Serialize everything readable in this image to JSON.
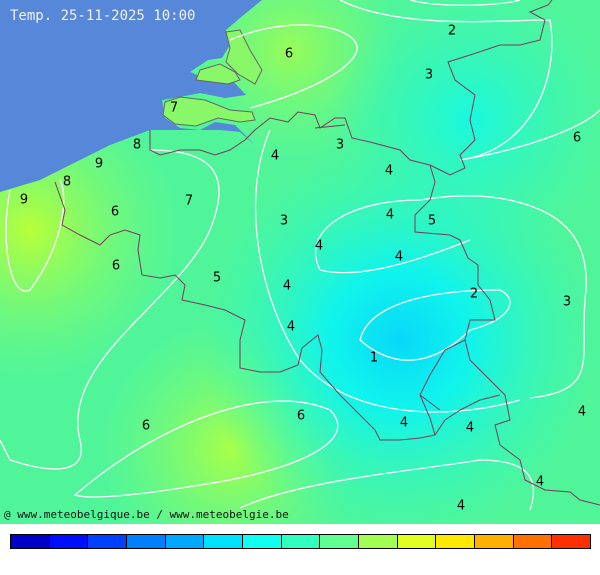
{
  "header": {
    "title": "Temp. 25-11-2025 10:00"
  },
  "footer": {
    "credit": "@ www.meteobelgique.be / www.meteobelgie.be"
  },
  "map": {
    "sea_color": "#5687d8",
    "isotherm_labels": [
      "6",
      "2",
      "3",
      "7",
      "6",
      "8",
      "9",
      "8",
      "9",
      "4",
      "3",
      "4",
      "6",
      "7",
      "3",
      "4",
      "4",
      "5",
      "6",
      "4",
      "4",
      "5",
      "2",
      "3",
      "4",
      "1",
      "4",
      "6",
      "6",
      "4",
      "4",
      "4",
      "4"
    ]
  },
  "colorbar": {
    "colors": [
      "#0000c8",
      "#0010ff",
      "#0040ff",
      "#0080ff",
      "#00a8ff",
      "#00e0ff",
      "#10fff0",
      "#30ffc0",
      "#60ff90",
      "#a0ff50",
      "#e0ff20",
      "#ffe800",
      "#ffb000",
      "#ff7000",
      "#ff3000"
    ]
  }
}
